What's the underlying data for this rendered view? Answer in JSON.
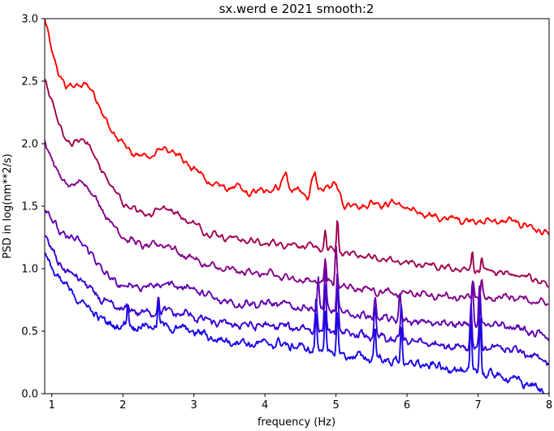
{
  "chart_data": {
    "type": "line",
    "title": "sx.werd e 2021 smooth:2",
    "xlabel": "frequency (Hz)",
    "ylabel": "PSD in log(nm**2/s)",
    "xlim": [
      0.9,
      8.0
    ],
    "ylim": [
      0.0,
      3.0
    ],
    "xticks": [
      "1",
      "2",
      "3",
      "4",
      "5",
      "6",
      "7",
      "8"
    ],
    "yticks": [
      "0.0",
      "0.5",
      "1.0",
      "1.5",
      "2.0",
      "2.5",
      "3.0"
    ],
    "grid": false,
    "legend": "none",
    "series": [
      {
        "color": "#ff0000",
        "points": [
          [
            0.9,
            3.0
          ],
          [
            1.0,
            2.75
          ],
          [
            1.1,
            2.55
          ],
          [
            1.2,
            2.45
          ],
          [
            1.3,
            2.48
          ],
          [
            1.4,
            2.45
          ],
          [
            1.5,
            2.48
          ],
          [
            1.6,
            2.4
          ],
          [
            1.7,
            2.25
          ],
          [
            1.8,
            2.15
          ],
          [
            1.9,
            2.05
          ],
          [
            2.0,
            2.0
          ],
          [
            2.2,
            1.9
          ],
          [
            2.4,
            1.9
          ],
          [
            2.6,
            1.97
          ],
          [
            2.8,
            1.9
          ],
          [
            3.0,
            1.8
          ],
          [
            3.2,
            1.7
          ],
          [
            3.4,
            1.65
          ],
          [
            3.6,
            1.65
          ],
          [
            3.8,
            1.6
          ],
          [
            4.0,
            1.63
          ],
          [
            4.2,
            1.64
          ],
          [
            4.3,
            1.8
          ],
          [
            4.35,
            1.62
          ],
          [
            4.5,
            1.62
          ],
          [
            4.6,
            1.57
          ],
          [
            4.7,
            1.78
          ],
          [
            4.75,
            1.6
          ],
          [
            4.85,
            1.66
          ],
          [
            5.0,
            1.67
          ],
          [
            5.1,
            1.52
          ],
          [
            5.3,
            1.5
          ],
          [
            5.5,
            1.52
          ],
          [
            5.7,
            1.52
          ],
          [
            5.9,
            1.52
          ],
          [
            6.1,
            1.45
          ],
          [
            6.3,
            1.43
          ],
          [
            6.5,
            1.4
          ],
          [
            6.7,
            1.4
          ],
          [
            6.9,
            1.38
          ],
          [
            7.1,
            1.38
          ],
          [
            7.3,
            1.38
          ],
          [
            7.5,
            1.38
          ],
          [
            7.7,
            1.34
          ],
          [
            7.9,
            1.3
          ],
          [
            8.0,
            1.26
          ]
        ],
        "peaks": [],
        "noise": 0.012
      },
      {
        "color": "#a0004f",
        "points": [
          [
            0.9,
            2.5
          ],
          [
            1.0,
            2.35
          ],
          [
            1.1,
            2.15
          ],
          [
            1.2,
            2.02
          ],
          [
            1.3,
            2.0
          ],
          [
            1.4,
            2.03
          ],
          [
            1.5,
            2.02
          ],
          [
            1.6,
            1.9
          ],
          [
            1.7,
            1.78
          ],
          [
            1.8,
            1.7
          ],
          [
            1.9,
            1.62
          ],
          [
            2.0,
            1.52
          ],
          [
            2.2,
            1.46
          ],
          [
            2.4,
            1.44
          ],
          [
            2.6,
            1.5
          ],
          [
            2.8,
            1.42
          ],
          [
            3.0,
            1.36
          ],
          [
            3.2,
            1.28
          ],
          [
            3.4,
            1.26
          ],
          [
            3.6,
            1.24
          ],
          [
            3.8,
            1.22
          ],
          [
            4.0,
            1.2
          ],
          [
            4.2,
            1.2
          ],
          [
            4.4,
            1.19
          ],
          [
            4.6,
            1.18
          ],
          [
            4.8,
            1.16
          ],
          [
            5.0,
            1.14
          ],
          [
            5.2,
            1.12
          ],
          [
            5.4,
            1.1
          ],
          [
            5.6,
            1.08
          ],
          [
            5.8,
            1.06
          ],
          [
            6.0,
            1.05
          ],
          [
            6.2,
            1.03
          ],
          [
            6.4,
            1.03
          ],
          [
            6.6,
            1.0
          ],
          [
            6.8,
            0.99
          ],
          [
            7.0,
            0.98
          ],
          [
            7.2,
            0.98
          ],
          [
            7.4,
            0.96
          ],
          [
            7.6,
            0.95
          ],
          [
            7.8,
            0.92
          ],
          [
            8.0,
            0.86
          ]
        ],
        "peaks": [
          [
            4.85,
            0.15
          ],
          [
            5.02,
            0.25
          ],
          [
            6.92,
            0.15
          ],
          [
            7.05,
            0.13
          ]
        ],
        "noise": 0.01
      },
      {
        "color": "#85008a",
        "points": [
          [
            0.9,
            2.02
          ],
          [
            1.0,
            1.88
          ],
          [
            1.1,
            1.75
          ],
          [
            1.2,
            1.68
          ],
          [
            1.3,
            1.66
          ],
          [
            1.4,
            1.7
          ],
          [
            1.5,
            1.66
          ],
          [
            1.6,
            1.58
          ],
          [
            1.7,
            1.48
          ],
          [
            1.8,
            1.4
          ],
          [
            1.9,
            1.32
          ],
          [
            2.0,
            1.26
          ],
          [
            2.2,
            1.2
          ],
          [
            2.4,
            1.18
          ],
          [
            2.6,
            1.2
          ],
          [
            2.8,
            1.12
          ],
          [
            3.0,
            1.08
          ],
          [
            3.2,
            1.02
          ],
          [
            3.4,
            1.0
          ],
          [
            3.6,
            0.98
          ],
          [
            3.8,
            0.97
          ],
          [
            4.0,
            0.96
          ],
          [
            4.2,
            0.94
          ],
          [
            4.4,
            0.92
          ],
          [
            4.6,
            0.9
          ],
          [
            4.8,
            0.9
          ],
          [
            5.0,
            0.88
          ],
          [
            5.2,
            0.85
          ],
          [
            5.4,
            0.84
          ],
          [
            5.6,
            0.82
          ],
          [
            5.8,
            0.8
          ],
          [
            6.0,
            0.8
          ],
          [
            6.2,
            0.8
          ],
          [
            6.4,
            0.78
          ],
          [
            6.6,
            0.78
          ],
          [
            6.8,
            0.77
          ],
          [
            7.0,
            0.76
          ],
          [
            7.2,
            0.76
          ],
          [
            7.4,
            0.78
          ],
          [
            7.6,
            0.76
          ],
          [
            7.8,
            0.74
          ],
          [
            8.0,
            0.72
          ]
        ],
        "peaks": [
          [
            4.85,
            0.2
          ],
          [
            5.0,
            0.3
          ],
          [
            6.93,
            0.15
          ],
          [
            7.05,
            0.15
          ]
        ],
        "noise": 0.012
      },
      {
        "color": "#6000b0",
        "points": [
          [
            0.9,
            1.5
          ],
          [
            1.0,
            1.4
          ],
          [
            1.1,
            1.3
          ],
          [
            1.2,
            1.26
          ],
          [
            1.3,
            1.24
          ],
          [
            1.4,
            1.22
          ],
          [
            1.5,
            1.16
          ],
          [
            1.6,
            1.08
          ],
          [
            1.7,
            1.0
          ],
          [
            1.8,
            0.94
          ],
          [
            1.9,
            0.88
          ],
          [
            2.0,
            0.86
          ],
          [
            2.2,
            0.86
          ],
          [
            2.4,
            0.86
          ],
          [
            2.6,
            0.88
          ],
          [
            2.8,
            0.86
          ],
          [
            3.0,
            0.84
          ],
          [
            3.2,
            0.78
          ],
          [
            3.4,
            0.74
          ],
          [
            3.6,
            0.72
          ],
          [
            3.8,
            0.72
          ],
          [
            4.0,
            0.72
          ],
          [
            4.2,
            0.72
          ],
          [
            4.4,
            0.7
          ],
          [
            4.6,
            0.68
          ],
          [
            4.8,
            0.68
          ],
          [
            5.0,
            0.66
          ],
          [
            5.2,
            0.64
          ],
          [
            5.4,
            0.62
          ],
          [
            5.6,
            0.6
          ],
          [
            5.8,
            0.6
          ],
          [
            6.0,
            0.58
          ],
          [
            6.2,
            0.57
          ],
          [
            6.4,
            0.57
          ],
          [
            6.6,
            0.56
          ],
          [
            6.8,
            0.56
          ],
          [
            7.0,
            0.55
          ],
          [
            7.2,
            0.55
          ],
          [
            7.4,
            0.54
          ],
          [
            7.6,
            0.52
          ],
          [
            7.8,
            0.48
          ],
          [
            8.0,
            0.45
          ]
        ],
        "peaks": [
          [
            4.75,
            0.25
          ],
          [
            4.85,
            0.3
          ],
          [
            5.02,
            0.32
          ],
          [
            5.55,
            0.2
          ],
          [
            5.9,
            0.2
          ],
          [
            6.92,
            0.35
          ],
          [
            7.02,
            0.3
          ]
        ],
        "noise": 0.015
      },
      {
        "color": "#3a00d2",
        "points": [
          [
            0.9,
            1.25
          ],
          [
            1.0,
            1.15
          ],
          [
            1.1,
            1.05
          ],
          [
            1.2,
            0.98
          ],
          [
            1.3,
            0.95
          ],
          [
            1.4,
            0.92
          ],
          [
            1.5,
            0.86
          ],
          [
            1.6,
            0.8
          ],
          [
            1.7,
            0.75
          ],
          [
            1.8,
            0.72
          ],
          [
            1.9,
            0.68
          ],
          [
            2.0,
            0.68
          ],
          [
            2.2,
            0.66
          ],
          [
            2.4,
            0.64
          ],
          [
            2.6,
            0.66
          ],
          [
            2.8,
            0.64
          ],
          [
            3.0,
            0.62
          ],
          [
            3.2,
            0.58
          ],
          [
            3.4,
            0.56
          ],
          [
            3.6,
            0.55
          ],
          [
            3.8,
            0.55
          ],
          [
            4.0,
            0.54
          ],
          [
            4.2,
            0.54
          ],
          [
            4.4,
            0.53
          ],
          [
            4.6,
            0.52
          ],
          [
            4.8,
            0.5
          ],
          [
            5.0,
            0.5
          ],
          [
            5.2,
            0.48
          ],
          [
            5.4,
            0.46
          ],
          [
            5.6,
            0.45
          ],
          [
            5.8,
            0.43
          ],
          [
            6.0,
            0.42
          ],
          [
            6.2,
            0.41
          ],
          [
            6.4,
            0.4
          ],
          [
            6.6,
            0.38
          ],
          [
            6.8,
            0.38
          ],
          [
            7.0,
            0.37
          ],
          [
            7.2,
            0.36
          ],
          [
            7.4,
            0.36
          ],
          [
            7.6,
            0.34
          ],
          [
            7.8,
            0.3
          ],
          [
            8.0,
            0.26
          ]
        ],
        "peaks": [
          [
            2.5,
            0.15
          ],
          [
            4.72,
            0.25
          ],
          [
            4.85,
            0.35
          ],
          [
            5.02,
            0.35
          ],
          [
            5.55,
            0.25
          ],
          [
            5.92,
            0.3
          ],
          [
            6.9,
            0.35
          ],
          [
            7.03,
            0.4
          ]
        ],
        "noise": 0.018
      },
      {
        "color": "#1a08e8",
        "points": [
          [
            0.9,
            1.12
          ],
          [
            1.0,
            1.0
          ],
          [
            1.1,
            0.92
          ],
          [
            1.2,
            0.86
          ],
          [
            1.3,
            0.8
          ],
          [
            1.4,
            0.74
          ],
          [
            1.5,
            0.7
          ],
          [
            1.6,
            0.64
          ],
          [
            1.7,
            0.6
          ],
          [
            1.8,
            0.56
          ],
          [
            1.9,
            0.54
          ],
          [
            2.0,
            0.54
          ],
          [
            2.2,
            0.54
          ],
          [
            2.4,
            0.54
          ],
          [
            2.6,
            0.54
          ],
          [
            2.8,
            0.52
          ],
          [
            3.0,
            0.5
          ],
          [
            3.2,
            0.46
          ],
          [
            3.4,
            0.42
          ],
          [
            3.6,
            0.42
          ],
          [
            3.8,
            0.4
          ],
          [
            4.0,
            0.4
          ],
          [
            4.2,
            0.4
          ],
          [
            4.4,
            0.38
          ],
          [
            4.6,
            0.36
          ],
          [
            4.8,
            0.34
          ],
          [
            5.0,
            0.32
          ],
          [
            5.2,
            0.3
          ],
          [
            5.4,
            0.29
          ],
          [
            5.6,
            0.28
          ],
          [
            5.8,
            0.26
          ],
          [
            6.0,
            0.24
          ],
          [
            6.2,
            0.23
          ],
          [
            6.4,
            0.22
          ],
          [
            6.6,
            0.2
          ],
          [
            6.8,
            0.18
          ],
          [
            7.0,
            0.17
          ],
          [
            7.2,
            0.15
          ],
          [
            7.4,
            0.13
          ],
          [
            7.6,
            0.1
          ],
          [
            7.8,
            0.05
          ],
          [
            8.0,
            0.0
          ]
        ],
        "peaks": [
          [
            2.07,
            0.18
          ],
          [
            2.5,
            0.2
          ],
          [
            4.72,
            0.28
          ],
          [
            4.85,
            0.35
          ],
          [
            5.02,
            0.3
          ],
          [
            5.55,
            0.25
          ],
          [
            5.92,
            0.3
          ],
          [
            6.9,
            0.35
          ],
          [
            7.03,
            0.45
          ]
        ],
        "noise": 0.02
      }
    ]
  }
}
